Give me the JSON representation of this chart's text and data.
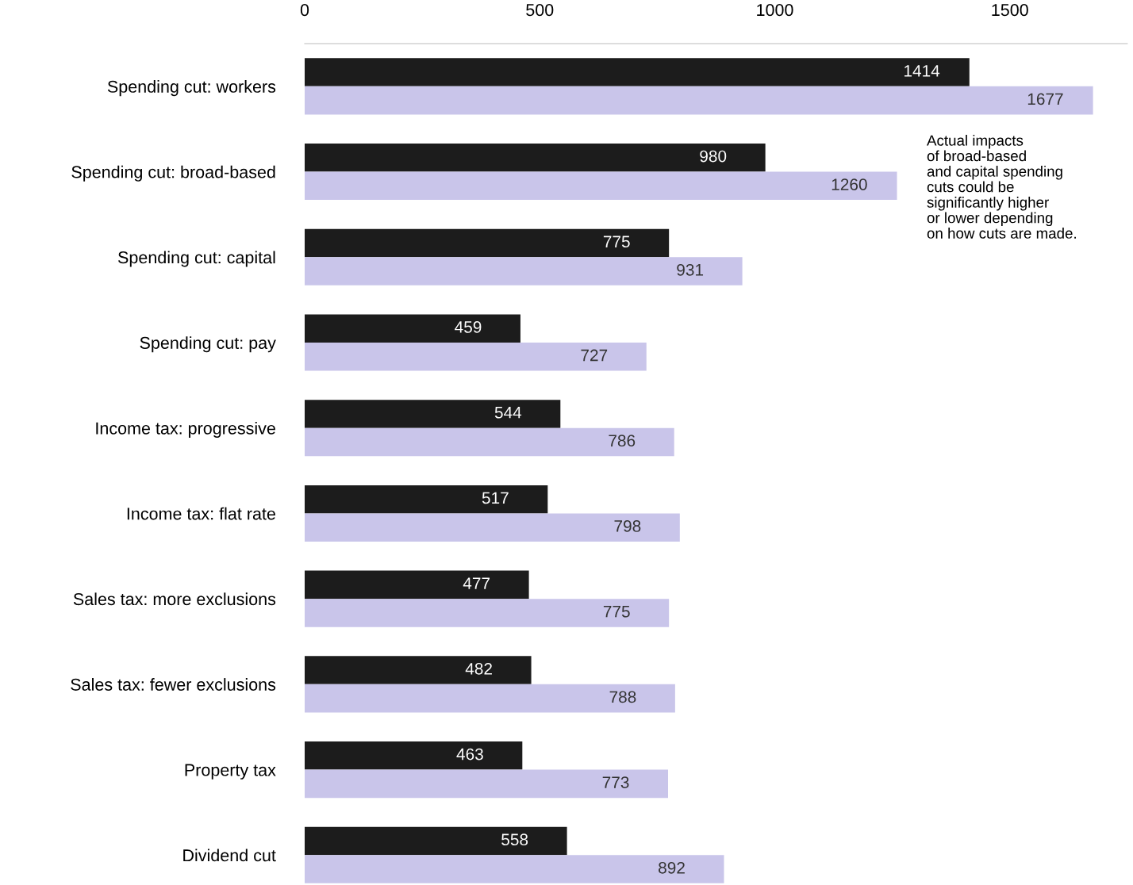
{
  "chart_data": {
    "type": "bar",
    "orientation": "horizontal",
    "categories": [
      "Spending cut: workers",
      "Spending cut: broad-based",
      "Spending cut: capital",
      "Spending cut: pay",
      "Income tax: progressive",
      "Income tax: flat rate",
      "Sales tax: more exclusions",
      "Sales tax: fewer exclusions",
      "Property tax",
      "Dividend cut"
    ],
    "series": [
      {
        "color": "#1c1c1c",
        "values": [
          1414,
          980,
          775,
          459,
          544,
          517,
          477,
          482,
          463,
          558
        ]
      },
      {
        "color": "#c9c5ea",
        "values": [
          1677,
          1260,
          931,
          727,
          786,
          798,
          775,
          788,
          773,
          892
        ]
      }
    ],
    "xlim": [
      0,
      1750
    ],
    "xticks": [
      0,
      500,
      1000,
      1500
    ],
    "grid": false,
    "data_labels": true,
    "annotations": [
      "Actual impacts\nof broad-based\nand capital spending\ncuts could be\nsignificantly higher\nor lower depending\non how cuts are made."
    ]
  }
}
